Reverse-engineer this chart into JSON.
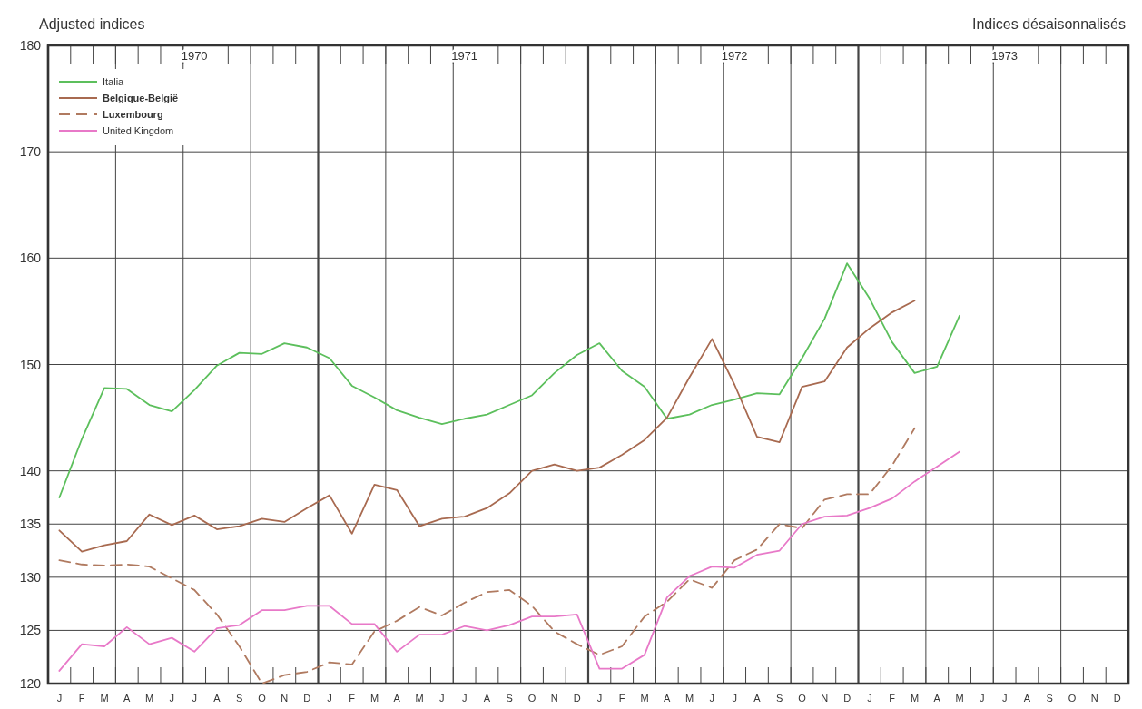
{
  "chart_data": {
    "type": "line",
    "title": "Adjusted indices",
    "subtitle": "Indices désaisonnalisés",
    "annotations": [
      "1970",
      "1971",
      "1972",
      "1973"
    ],
    "categories": [
      "J",
      "F",
      "M",
      "A",
      "M",
      "J",
      "J",
      "A",
      "S",
      "O",
      "N",
      "D",
      "J",
      "F",
      "M",
      "A",
      "M",
      "J",
      "J",
      "A",
      "S",
      "O",
      "N",
      "D",
      "J",
      "F",
      "M",
      "A",
      "M",
      "J",
      "J",
      "A",
      "S",
      "O",
      "N",
      "D",
      "J",
      "F",
      "M",
      "A",
      "M",
      "J",
      "J",
      "A",
      "S",
      "O",
      "N",
      "D"
    ],
    "ylim": [
      120,
      180
    ],
    "yticks": [
      120,
      125,
      130,
      135,
      140,
      150,
      160,
      170,
      180
    ],
    "grid": true,
    "legend": "top left",
    "marker": "none",
    "series": [
      {
        "name": "Italia",
        "color": "#5cbf5c",
        "line_style": "solid",
        "values": [
          137.5,
          143,
          147.8,
          147.7,
          146.2,
          145.6,
          147.6,
          149.9,
          151.1,
          151,
          152,
          151.6,
          150.6,
          148,
          146.9,
          145.7,
          145,
          144.4,
          144.9,
          145.3,
          146.2,
          147.1,
          149.2,
          150.9,
          152,
          149.4,
          147.9,
          144.9,
          145.3,
          146.2,
          146.7,
          147.3,
          147.2,
          150.6,
          154.3,
          159.5,
          156.2,
          152.1,
          149.2,
          149.8,
          154.6,
          null,
          null,
          null,
          null,
          null,
          null,
          null
        ]
      },
      {
        "name": "Belgique-België",
        "color": "#a86a50",
        "line_style": "solid",
        "values": [
          134.4,
          132.4,
          133,
          133.4,
          135.9,
          134.9,
          135.8,
          134.5,
          134.8,
          135.5,
          135.2,
          136.5,
          137.7,
          134.1,
          138.7,
          138.2,
          134.8,
          135.5,
          135.7,
          136.5,
          137.9,
          140,
          140.6,
          140,
          140.3,
          141.5,
          142.9,
          145,
          148.8,
          152.4,
          148.1,
          143.2,
          142.7,
          147.9,
          148.4,
          151.6,
          153.4,
          154.9,
          156,
          null,
          null,
          null,
          null,
          null,
          null,
          null,
          null,
          null
        ]
      },
      {
        "name": "Luxembourg",
        "color": "#b07a60",
        "line_style": "dashed",
        "values": [
          131.6,
          131.2,
          131.1,
          131.2,
          131,
          129.9,
          128.8,
          126.5,
          123.5,
          120,
          120.8,
          121.1,
          122,
          121.8,
          124.9,
          125.9,
          127.2,
          126.4,
          127.6,
          128.6,
          128.8,
          127.3,
          124.9,
          123.7,
          122.7,
          123.5,
          126.3,
          127.7,
          129.8,
          129,
          131.6,
          132.6,
          135,
          134.6,
          137.3,
          137.8,
          137.8,
          140.5,
          144,
          null,
          null,
          null,
          null,
          null,
          null,
          null,
          null,
          null
        ]
      },
      {
        "name": "United Kingdom",
        "color": "#e879c8",
        "line_style": "solid",
        "values": [
          121.2,
          123.7,
          123.5,
          125.3,
          123.7,
          124.3,
          123,
          125.2,
          125.5,
          126.9,
          126.9,
          127.3,
          127.3,
          125.6,
          125.6,
          123,
          124.6,
          124.6,
          125.4,
          125,
          125.5,
          126.3,
          126.3,
          126.5,
          121.4,
          121.4,
          122.7,
          128.1,
          130.1,
          131,
          130.9,
          132.1,
          132.5,
          135,
          135.7,
          135.8,
          136.5,
          137.4,
          139,
          140.4,
          141.8,
          null,
          null,
          null,
          null,
          null,
          null,
          null
        ]
      }
    ]
  }
}
